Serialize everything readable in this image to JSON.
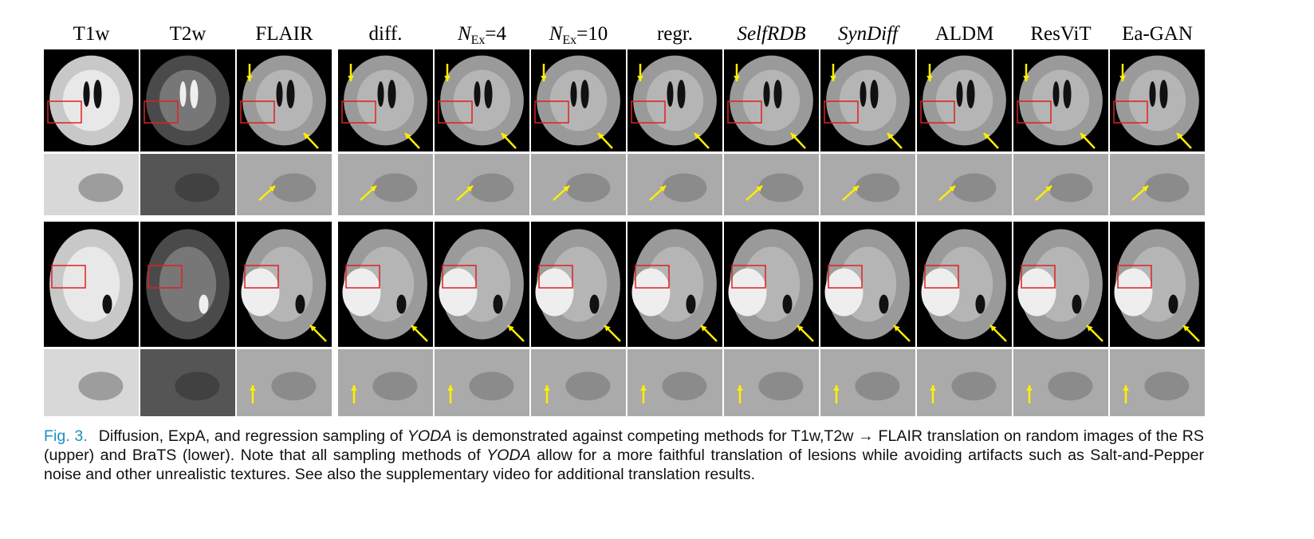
{
  "headers": [
    {
      "text": "T1w"
    },
    {
      "text": "T2w"
    },
    {
      "text": "FLAIR"
    },
    {
      "text": "diff."
    },
    {
      "symbol": "N",
      "subscript": "Ex",
      "suffix": "=4"
    },
    {
      "symbol": "N",
      "subscript": "Ex",
      "suffix": "=10"
    },
    {
      "text": "regr."
    },
    {
      "text": "SelfRDB",
      "italic": true
    },
    {
      "text": "SynDiff",
      "italic": true
    },
    {
      "text": "ALDM"
    },
    {
      "text": "ResViT"
    },
    {
      "text": "Ea-GAN"
    }
  ],
  "caption": {
    "label": "Fig. 3.",
    "segments": [
      {
        "text": "Diffusion, ExpA, and regression sampling of "
      },
      {
        "text": "YODA",
        "italic": true
      },
      {
        "text": " is demonstrated against competing methods for T1w,T2w → FLAIR translation on random images of the RS (upper) and BraTS (lower). Note that all sampling methods of "
      },
      {
        "text": "YODA",
        "italic": true
      },
      {
        "text": " allow for a more faithful translation of lesions while avoiding artifacts such as Salt-and-Pepper noise and other unrealistic textures. See also the supplementary video for additional translation results."
      }
    ]
  }
}
